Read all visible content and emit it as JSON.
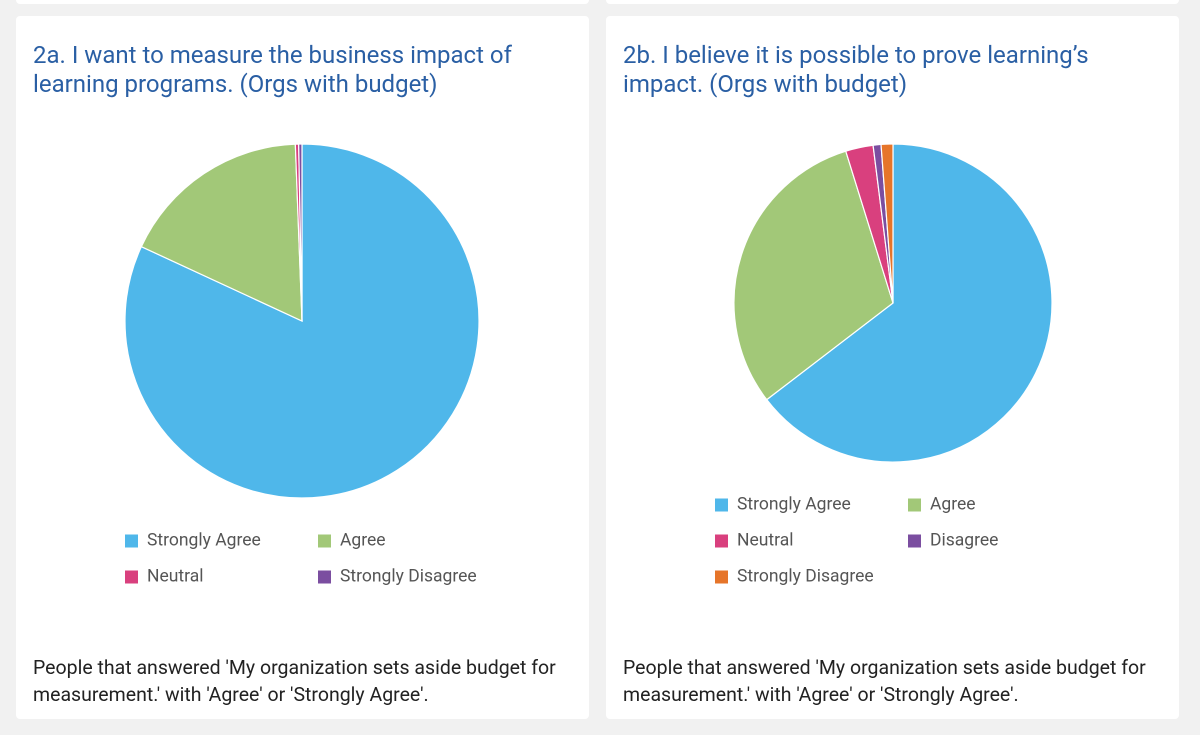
{
  "chart_data": [
    {
      "type": "pie",
      "title": "2a. I want to measure the business impact of learning programs. (Orgs with budget)",
      "categories": [
        "Strongly Agree",
        "Agree",
        "Neutral",
        "Strongly Disagree"
      ],
      "values": [
        81.9,
        17.5,
        0.3,
        0.3
      ],
      "colors": [
        "#4fb7ea",
        "#a2c878",
        "#d9407e",
        "#7b4ea0"
      ],
      "legend": "bottom",
      "note": "People that answered 'My organization sets aside budget for measurement.' with 'Agree' or 'Strongly Agree'."
    },
    {
      "type": "pie",
      "title": "2b. I believe it is possible to prove learning’s impact. (Orgs with budget)",
      "categories": [
        "Strongly Agree",
        "Agree",
        "Neutral",
        "Disagree",
        "Strongly Disagree"
      ],
      "values": [
        64.6,
        30.6,
        2.8,
        0.8,
        1.2
      ],
      "colors": [
        "#4fb7ea",
        "#a2c878",
        "#d9407e",
        "#7b4ea0",
        "#e6752a"
      ],
      "legend": "bottom",
      "note": "People that answered 'My organization sets aside budget for measurement.' with 'Agree' or 'Strongly Agree'."
    }
  ]
}
